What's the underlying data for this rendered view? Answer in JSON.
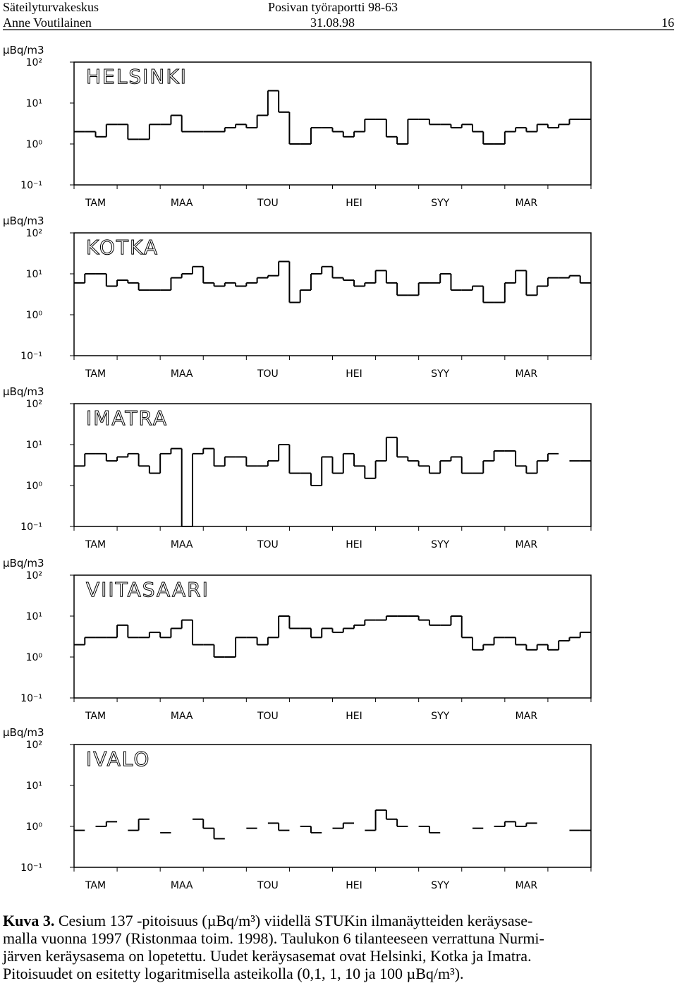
{
  "header": {
    "org": "Säteilyturvakeskus",
    "author": "Anne Voutilainen",
    "report": "Posivan työraportti 98-63",
    "date": "31.08.98",
    "page": "16"
  },
  "chart_data": [
    {
      "type": "step",
      "title": "HELSINKI",
      "y_label": "µBq/m3",
      "log_y": true,
      "color": "#000000",
      "categories": [
        null,
        null,
        "TAM",
        null,
        null,
        null,
        null,
        null,
        null,
        null,
        "MAA",
        null,
        null,
        null,
        null,
        null,
        null,
        null,
        "TOU",
        null,
        null,
        null,
        null,
        null,
        null,
        null,
        "HEI",
        null,
        null,
        null,
        null,
        null,
        null,
        null,
        "SYY",
        null,
        null,
        null,
        null,
        null,
        null,
        null,
        "MAR",
        null,
        null,
        null,
        null,
        null
      ],
      "values": [
        2,
        2,
        1.5,
        3,
        3,
        1.3,
        1.3,
        3,
        3,
        5,
        2,
        2,
        2,
        2,
        2.5,
        3,
        2.5,
        5,
        20,
        6,
        1,
        1,
        2.5,
        2.5,
        2,
        1.5,
        2,
        4,
        4,
        1.5,
        1,
        4,
        4,
        3,
        3,
        2.5,
        3,
        2,
        1,
        1,
        2,
        2.5,
        2,
        3,
        2.5,
        3,
        4,
        4
      ],
      "ylim": [
        0.1,
        100
      ],
      "yticks": [
        {
          "value": 100,
          "label": "10²"
        },
        {
          "value": 10,
          "label": "10¹"
        },
        {
          "value": 1,
          "label": "10⁰"
        },
        {
          "value": 0.1,
          "label": "10⁻¹"
        }
      ]
    },
    {
      "type": "step",
      "title": "KOTKA",
      "y_label": "µBq/m3",
      "log_y": true,
      "color": "#000000",
      "categories": [
        null,
        null,
        "TAM",
        null,
        null,
        null,
        null,
        null,
        null,
        null,
        "MAA",
        null,
        null,
        null,
        null,
        null,
        null,
        null,
        "TOU",
        null,
        null,
        null,
        null,
        null,
        null,
        null,
        "HEI",
        null,
        null,
        null,
        null,
        null,
        null,
        null,
        "SYY",
        null,
        null,
        null,
        null,
        null,
        null,
        null,
        "MAR",
        null,
        null,
        null,
        null,
        null
      ],
      "values": [
        6,
        10,
        10,
        5,
        7,
        6,
        4,
        4,
        4,
        8,
        10,
        15,
        6,
        5,
        6,
        5,
        6,
        8,
        9,
        20,
        2,
        4,
        10,
        15,
        8,
        7,
        5,
        6,
        12,
        6,
        3,
        3,
        6,
        6,
        10,
        4,
        4,
        5,
        2,
        2,
        6,
        12,
        3,
        5,
        8,
        8,
        9,
        6
      ],
      "ylim": [
        0.1,
        100
      ],
      "yticks": [
        {
          "value": 100,
          "label": "10²"
        },
        {
          "value": 10,
          "label": "10¹"
        },
        {
          "value": 1,
          "label": "10⁰"
        },
        {
          "value": 0.1,
          "label": "10⁻¹"
        }
      ]
    },
    {
      "type": "step",
      "title": "IMATRA",
      "y_label": "µBq/m3",
      "log_y": true,
      "color": "#000000",
      "categories": [
        null,
        null,
        "TAM",
        null,
        null,
        null,
        null,
        null,
        null,
        null,
        "MAA",
        null,
        null,
        null,
        null,
        null,
        null,
        null,
        "TOU",
        null,
        null,
        null,
        null,
        null,
        null,
        null,
        "HEI",
        null,
        null,
        null,
        null,
        null,
        null,
        null,
        "SYY",
        null,
        null,
        null,
        null,
        null,
        null,
        null,
        "MAR",
        null,
        null,
        null,
        null,
        null
      ],
      "values": [
        3,
        6,
        6,
        4,
        5,
        6,
        3,
        2,
        6,
        8,
        0.1,
        6,
        8,
        3,
        5,
        5,
        3,
        3,
        4,
        10,
        2,
        2,
        1,
        5,
        2,
        6,
        3,
        1.5,
        4,
        15,
        5,
        4,
        3,
        2,
        4,
        5,
        2,
        2,
        4,
        7,
        7,
        3,
        2,
        4,
        6,
        null,
        4,
        4
      ],
      "ylim": [
        0.1,
        100
      ],
      "yticks": [
        {
          "value": 100,
          "label": "10²"
        },
        {
          "value": 10,
          "label": "10¹"
        },
        {
          "value": 1,
          "label": "10⁰"
        },
        {
          "value": 0.1,
          "label": "10⁻¹"
        }
      ]
    },
    {
      "type": "step",
      "title": "VIITASAARI",
      "y_label": "µBq/m3",
      "log_y": true,
      "color": "#000000",
      "categories": [
        null,
        null,
        "TAM",
        null,
        null,
        null,
        null,
        null,
        null,
        null,
        "MAA",
        null,
        null,
        null,
        null,
        null,
        null,
        null,
        "TOU",
        null,
        null,
        null,
        null,
        null,
        null,
        null,
        "HEI",
        null,
        null,
        null,
        null,
        null,
        null,
        null,
        "SYY",
        null,
        null,
        null,
        null,
        null,
        null,
        null,
        "MAR",
        null,
        null,
        null,
        null,
        null
      ],
      "values": [
        2,
        3,
        3,
        3,
        6,
        3,
        3,
        4,
        3,
        5,
        8,
        2,
        2,
        1,
        1,
        3,
        3,
        2,
        3,
        10,
        5,
        5,
        3,
        5,
        4,
        5,
        6,
        8,
        8,
        10,
        10,
        10,
        8,
        6,
        6,
        10,
        3,
        1.5,
        2,
        3,
        3,
        2,
        1.5,
        2,
        1.5,
        2.5,
        3,
        4
      ],
      "ylim": [
        0.1,
        100
      ],
      "yticks": [
        {
          "value": 100,
          "label": "10²"
        },
        {
          "value": 10,
          "label": "10¹"
        },
        {
          "value": 1,
          "label": "10⁰"
        },
        {
          "value": 0.1,
          "label": "10⁻¹"
        }
      ]
    },
    {
      "type": "step",
      "title": "IVALO",
      "y_label": "µBq/m3",
      "log_y": true,
      "color": "#000000",
      "categories": [
        null,
        null,
        "TAM",
        null,
        null,
        null,
        null,
        null,
        null,
        null,
        "MAA",
        null,
        null,
        null,
        null,
        null,
        null,
        null,
        "TOU",
        null,
        null,
        null,
        null,
        null,
        null,
        null,
        "HEI",
        null,
        null,
        null,
        null,
        null,
        null,
        null,
        "SYY",
        null,
        null,
        null,
        null,
        null,
        null,
        null,
        "MAR",
        null,
        null,
        null,
        null,
        null
      ],
      "values": [
        0.8,
        null,
        1.0,
        1.3,
        null,
        0.8,
        1.5,
        null,
        0.7,
        null,
        null,
        1.5,
        0.9,
        0.5,
        null,
        null,
        0.9,
        null,
        1.2,
        0.8,
        null,
        1.0,
        0.7,
        null,
        0.9,
        1.2,
        null,
        0.8,
        2.5,
        1.5,
        1.0,
        null,
        1.0,
        0.7,
        null,
        null,
        null,
        0.9,
        null,
        1.0,
        1.3,
        1.0,
        1.2,
        null,
        null,
        null,
        0.8,
        0.8
      ],
      "ylim": [
        0.1,
        100
      ],
      "yticks": [
        {
          "value": 100,
          "label": "10²"
        },
        {
          "value": 10,
          "label": "10¹"
        },
        {
          "value": 1,
          "label": "10⁰"
        },
        {
          "value": 0.1,
          "label": "10⁻¹"
        }
      ]
    }
  ],
  "caption": {
    "label": "Kuva 3.",
    "lines": [
      "Cesium 137 -pitoisuus (µBq/m³) viidellä STUKin ilmanäytteiden keräysase-",
      "malla vuonna 1997 (Ristonmaa toim. 1998). Taulukon 6 tilanteeseen verrattuna Nurmi-",
      "järven keräysasema on lopetettu. Uudet keräysasemat ovat Helsinki, Kotka ja Imatra.",
      "Pitoisuudet on esitetty logaritmisella asteikolla (0,1, 1, 10 ja 100 µBq/m³)."
    ]
  }
}
